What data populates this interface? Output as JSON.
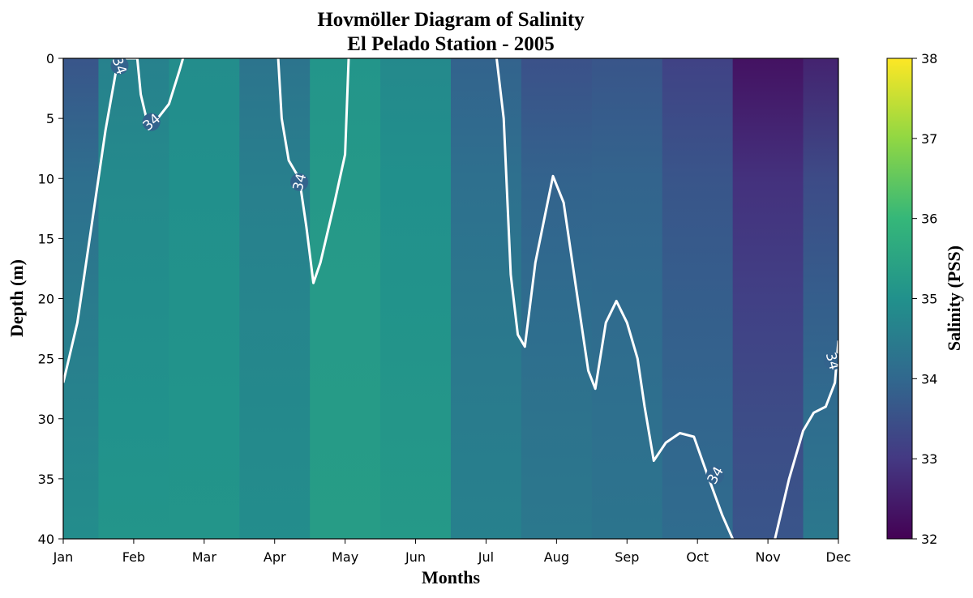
{
  "chart_data": {
    "type": "heatmap",
    "title_line1": "Hovmöller Diagram of Salinity",
    "title_line2": "El Pelado Station - 2005",
    "xlabel": "Months",
    "ylabel": "Depth (m)",
    "colorbar_label": "Salinity (PSS)",
    "colormap": "viridis",
    "x_categories": [
      "Jan",
      "Feb",
      "Mar",
      "Apr",
      "May",
      "Jun",
      "Jul",
      "Aug",
      "Sep",
      "Oct",
      "Nov",
      "Dec"
    ],
    "y_ticks": [
      "0",
      "5",
      "10",
      "15",
      "20",
      "25",
      "30",
      "35",
      "40"
    ],
    "y_values": [
      0,
      5,
      10,
      15,
      20,
      25,
      30,
      35,
      40
    ],
    "ylim": [
      40,
      0
    ],
    "xlim_months": [
      0,
      11
    ],
    "colorbar_ticks": [
      "32",
      "33",
      "34",
      "35",
      "36",
      "37",
      "38"
    ],
    "colorbar_values": [
      32,
      33,
      34,
      35,
      36,
      37,
      38
    ],
    "clim": [
      32,
      38
    ],
    "contour_level": 34,
    "contour_label_text": "34",
    "surface_salinity_by_month": [
      33.6,
      34.6,
      34.9,
      34.3,
      35.1,
      34.8,
      33.9,
      33.5,
      33.6,
      33.2,
      32.3,
      32.6
    ],
    "bottom_salinity_by_month": [
      34.9,
      35.1,
      35.1,
      34.9,
      35.3,
      35.2,
      34.6,
      34.4,
      34.3,
      34.1,
      33.6,
      34.4
    ],
    "contour_34_path": [
      [
        0.0,
        27
      ],
      [
        0.2,
        22
      ],
      [
        0.4,
        14
      ],
      [
        0.6,
        6
      ],
      [
        0.72,
        2
      ],
      [
        0.78,
        0
      ],
      [
        1.05,
        0
      ],
      [
        1.1,
        3
      ],
      [
        1.18,
        5
      ],
      [
        1.3,
        5.3
      ],
      [
        1.5,
        3.8
      ],
      [
        1.65,
        1
      ],
      [
        1.7,
        0
      ],
      [
        3.05,
        0
      ],
      [
        3.1,
        5
      ],
      [
        3.2,
        8.5
      ],
      [
        3.35,
        10
      ],
      [
        3.45,
        14
      ],
      [
        3.55,
        18.7
      ],
      [
        3.65,
        17
      ],
      [
        3.85,
        12
      ],
      [
        4.0,
        8
      ],
      [
        4.05,
        0
      ],
      [
        6.15,
        0
      ],
      [
        6.25,
        5
      ],
      [
        6.35,
        18
      ],
      [
        6.45,
        23
      ],
      [
        6.55,
        24
      ],
      [
        6.7,
        17
      ],
      [
        6.95,
        9.8
      ],
      [
        7.1,
        12
      ],
      [
        7.3,
        20
      ],
      [
        7.45,
        26
      ],
      [
        7.55,
        27.5
      ],
      [
        7.7,
        22
      ],
      [
        7.85,
        20.2
      ],
      [
        8.0,
        22
      ],
      [
        8.15,
        25
      ],
      [
        8.25,
        29
      ],
      [
        8.38,
        33.5
      ],
      [
        8.55,
        32
      ],
      [
        8.75,
        31.2
      ],
      [
        8.95,
        31.5
      ],
      [
        9.1,
        34
      ],
      [
        9.35,
        38
      ],
      [
        9.5,
        40
      ],
      [
        10.1,
        40
      ],
      [
        10.3,
        35
      ],
      [
        10.5,
        31
      ],
      [
        10.65,
        29.5
      ],
      [
        10.82,
        29
      ],
      [
        10.95,
        27
      ],
      [
        11.0,
        23.5
      ]
    ],
    "contour_label_positions": [
      [
        0.8,
        0.6
      ],
      [
        1.25,
        5.3
      ],
      [
        3.35,
        10.3
      ],
      [
        9.25,
        34.7
      ],
      [
        10.92,
        25.2
      ]
    ]
  }
}
